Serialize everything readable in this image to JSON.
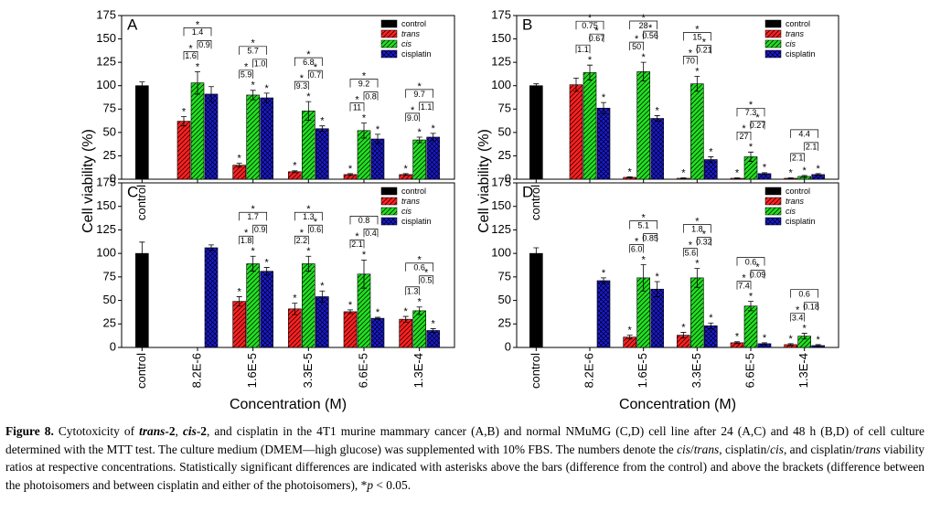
{
  "y_label": "Cell viability (%)",
  "x_label": "Concentration (M)",
  "significance_mark": "*",
  "chart_data": [
    {
      "type": "bar",
      "title": "A",
      "categories": [
        "control",
        null,
        null,
        null,
        null,
        null
      ],
      "ylim": [
        0,
        175
      ],
      "yticks": [
        0,
        25,
        50,
        75,
        100,
        125,
        150,
        175
      ],
      "series": [
        {
          "name": "control",
          "color": "#000000",
          "hatch": "none",
          "italic": false,
          "values": [
            100,
            null,
            null,
            null,
            null,
            null
          ],
          "errors": [
            4,
            null,
            null,
            null,
            null,
            null
          ],
          "significant": [
            false,
            false,
            false,
            false,
            false,
            false
          ]
        },
        {
          "name": "trans",
          "color": "#ff2020",
          "hatch": "/",
          "italic": true,
          "values": [
            null,
            62,
            15,
            8,
            5,
            5
          ],
          "errors": [
            null,
            5,
            2,
            1,
            1,
            1
          ],
          "significant": [
            false,
            true,
            true,
            true,
            true,
            true
          ]
        },
        {
          "name": "cis",
          "color": "#20e020",
          "hatch": "/",
          "italic": true,
          "values": [
            null,
            103,
            90,
            73,
            52,
            42
          ],
          "errors": [
            null,
            12,
            5,
            10,
            8,
            3
          ],
          "significant": [
            false,
            true,
            true,
            true,
            true,
            true
          ]
        },
        {
          "name": "cisplatin",
          "color": "#1a1adc",
          "hatch": "x",
          "italic": false,
          "values": [
            null,
            91,
            87,
            54,
            43,
            45
          ],
          "errors": [
            null,
            8,
            5,
            3,
            5,
            4
          ],
          "significant": [
            false,
            false,
            true,
            true,
            true,
            true
          ]
        }
      ],
      "brackets": [
        null,
        [
          "1.6",
          "0.9",
          "1.4"
        ],
        [
          "5.9",
          "1.0",
          "5.7"
        ],
        [
          "9.3",
          "0.7",
          "6.8"
        ],
        [
          "11",
          "0.8",
          "9.2"
        ],
        [
          "9.0",
          "1.1",
          "9.7"
        ]
      ],
      "bracket_sig": [
        null,
        [
          true,
          false,
          true
        ],
        [
          true,
          false,
          true
        ],
        [
          true,
          true,
          true
        ],
        [
          true,
          false,
          true
        ],
        [
          true,
          false,
          true
        ]
      ]
    },
    {
      "type": "bar",
      "title": "B",
      "categories": [
        "control",
        null,
        null,
        null,
        null,
        null
      ],
      "ylim": [
        0,
        175
      ],
      "yticks": [
        0,
        25,
        50,
        75,
        100,
        125,
        150,
        175
      ],
      "series": [
        {
          "name": "control",
          "color": "#000000",
          "hatch": "none",
          "italic": false,
          "values": [
            100,
            null,
            null,
            null,
            null,
            null
          ],
          "errors": [
            2,
            null,
            null,
            null,
            null,
            null
          ],
          "significant": [
            false,
            false,
            false,
            false,
            false,
            false
          ]
        },
        {
          "name": "trans",
          "color": "#ff2020",
          "hatch": "/",
          "italic": true,
          "values": [
            null,
            101,
            2,
            1,
            1,
            1
          ],
          "errors": [
            null,
            7,
            0.5,
            0.5,
            0.5,
            0.5
          ],
          "significant": [
            false,
            false,
            true,
            true,
            true,
            true
          ]
        },
        {
          "name": "cis",
          "color": "#20e020",
          "hatch": "/",
          "italic": true,
          "values": [
            null,
            114,
            115,
            102,
            24,
            3
          ],
          "errors": [
            null,
            8,
            10,
            8,
            5,
            1
          ],
          "significant": [
            false,
            true,
            true,
            true,
            true,
            true
          ]
        },
        {
          "name": "cisplatin",
          "color": "#1a1adc",
          "hatch": "x",
          "italic": false,
          "values": [
            null,
            76,
            65,
            21,
            6,
            5
          ],
          "errors": [
            null,
            6,
            3,
            3,
            1,
            1
          ],
          "significant": [
            false,
            true,
            true,
            true,
            true,
            true
          ]
        }
      ],
      "brackets": [
        null,
        [
          "1.1",
          "0.67",
          "0.75"
        ],
        [
          "50",
          "0.56",
          "28"
        ],
        [
          "70",
          "0.21",
          "15"
        ],
        [
          "27",
          "0.27",
          "7.3"
        ],
        [
          "2.1",
          "2.1",
          "4.4"
        ]
      ],
      "bracket_sig": [
        null,
        [
          false,
          true,
          true
        ],
        [
          true,
          true,
          true
        ],
        [
          true,
          true,
          true
        ],
        [
          true,
          true,
          true
        ],
        [
          false,
          false,
          false
        ]
      ]
    },
    {
      "type": "bar",
      "title": "C",
      "categories": [
        "control",
        "8.2E-6",
        "1.6E-5",
        "3.3E-5",
        "6.6E-5",
        "1.3E-4"
      ],
      "ylim": [
        0,
        175
      ],
      "yticks": [
        0,
        25,
        50,
        75,
        100,
        125,
        150,
        175
      ],
      "series": [
        {
          "name": "control",
          "color": "#000000",
          "hatch": "none",
          "italic": false,
          "values": [
            100,
            null,
            null,
            null,
            null,
            null
          ],
          "errors": [
            12,
            null,
            null,
            null,
            null,
            null
          ],
          "significant": [
            false,
            false,
            false,
            false,
            false,
            false
          ]
        },
        {
          "name": "trans",
          "color": "#ff2020",
          "hatch": "/",
          "italic": true,
          "values": [
            null,
            null,
            49,
            41,
            38,
            30
          ],
          "errors": [
            null,
            null,
            5,
            6,
            2,
            3
          ],
          "significant": [
            false,
            false,
            true,
            true,
            true,
            true
          ]
        },
        {
          "name": "cis",
          "color": "#20e020",
          "hatch": "/",
          "italic": true,
          "values": [
            null,
            null,
            89,
            89,
            78,
            39
          ],
          "errors": [
            null,
            null,
            8,
            8,
            15,
            4
          ],
          "significant": [
            false,
            false,
            true,
            true,
            true,
            true
          ]
        },
        {
          "name": "cisplatin",
          "color": "#1a1adc",
          "hatch": "x",
          "italic": false,
          "values": [
            null,
            106,
            81,
            54,
            31,
            18
          ],
          "errors": [
            null,
            3,
            4,
            6,
            1,
            2
          ],
          "significant": [
            false,
            false,
            true,
            true,
            true,
            true
          ]
        }
      ],
      "brackets": [
        null,
        null,
        [
          "1.8",
          "0.9",
          "1.7"
        ],
        [
          "2.2",
          "0.6",
          "1.3"
        ],
        [
          "2.1",
          "0.4",
          "0.8"
        ],
        [
          "1.3",
          "0.5",
          "0.6"
        ]
      ],
      "bracket_sig": [
        null,
        null,
        [
          true,
          false,
          true
        ],
        [
          true,
          true,
          true
        ],
        [
          true,
          false,
          false
        ],
        [
          false,
          true,
          true
        ]
      ]
    },
    {
      "type": "bar",
      "title": "D",
      "categories": [
        "control",
        "8.2E-6",
        "1.6E-5",
        "3.3E-5",
        "6.6E-5",
        "1.3E-4"
      ],
      "ylim": [
        0,
        175
      ],
      "yticks": [
        0,
        25,
        50,
        75,
        100,
        125,
        150,
        175
      ],
      "series": [
        {
          "name": "control",
          "color": "#000000",
          "hatch": "none",
          "italic": false,
          "values": [
            100,
            null,
            null,
            null,
            null,
            null
          ],
          "errors": [
            6,
            null,
            null,
            null,
            null,
            null
          ],
          "significant": [
            false,
            false,
            false,
            false,
            false,
            false
          ]
        },
        {
          "name": "trans",
          "color": "#ff2020",
          "hatch": "/",
          "italic": true,
          "values": [
            null,
            null,
            11,
            13,
            5,
            3
          ],
          "errors": [
            null,
            null,
            2,
            3,
            1,
            1
          ],
          "significant": [
            false,
            false,
            true,
            true,
            true,
            true
          ]
        },
        {
          "name": "cis",
          "color": "#20e020",
          "hatch": "/",
          "italic": true,
          "values": [
            null,
            null,
            74,
            74,
            44,
            12
          ],
          "errors": [
            null,
            null,
            14,
            10,
            5,
            3
          ],
          "significant": [
            false,
            false,
            true,
            true,
            true,
            true
          ]
        },
        {
          "name": "cisplatin",
          "color": "#1a1adc",
          "hatch": "x",
          "italic": false,
          "values": [
            null,
            71,
            62,
            23,
            4,
            2
          ],
          "errors": [
            null,
            3,
            8,
            3,
            1,
            1
          ],
          "significant": [
            false,
            true,
            true,
            true,
            true,
            true
          ]
        }
      ],
      "brackets": [
        null,
        null,
        [
          "6.0",
          "0.85",
          "5.1"
        ],
        [
          "5.6",
          "0.32",
          "1.8"
        ],
        [
          "7.4",
          "0.09",
          "0.6"
        ],
        [
          "3.4",
          "0.18",
          "0.6"
        ]
      ],
      "bracket_sig": [
        null,
        null,
        [
          true,
          false,
          true
        ],
        [
          true,
          true,
          true
        ],
        [
          true,
          true,
          false
        ],
        [
          true,
          false,
          false
        ]
      ]
    }
  ],
  "caption": [
    {
      "text": "Figure 8.",
      "style": "b"
    },
    {
      "text": " Cytotoxicity of "
    },
    {
      "text": "trans",
      "style": "bi"
    },
    {
      "text": "-2",
      "style": "b"
    },
    {
      "text": ", "
    },
    {
      "text": "cis",
      "style": "bi"
    },
    {
      "text": "-2",
      "style": "b"
    },
    {
      "text": ", and cisplatin in the 4T1 murine mammary cancer (A,B) and normal NMuMG (C,D) cell line after 24 (A,C) and 48 h (B,D) of cell culture determined with the MTT test. The culture medium (DMEM—high glucose) was supplemented with 10% FBS. The numbers denote the "
    },
    {
      "text": "cis",
      "style": "i"
    },
    {
      "text": "/"
    },
    {
      "text": "trans",
      "style": "i"
    },
    {
      "text": ", cisplatin/"
    },
    {
      "text": "cis",
      "style": "i"
    },
    {
      "text": ", and cisplatin/"
    },
    {
      "text": "trans",
      "style": "i"
    },
    {
      "text": " viability ratios at respective concentrations. Statistically significant differences are indicated with asterisks above the bars (difference from the control) and above the brackets (difference between the photoisomers and between cisplatin and either of the photoisomers), *"
    },
    {
      "text": "p",
      "style": "i"
    },
    {
      "text": " < 0.05."
    }
  ]
}
